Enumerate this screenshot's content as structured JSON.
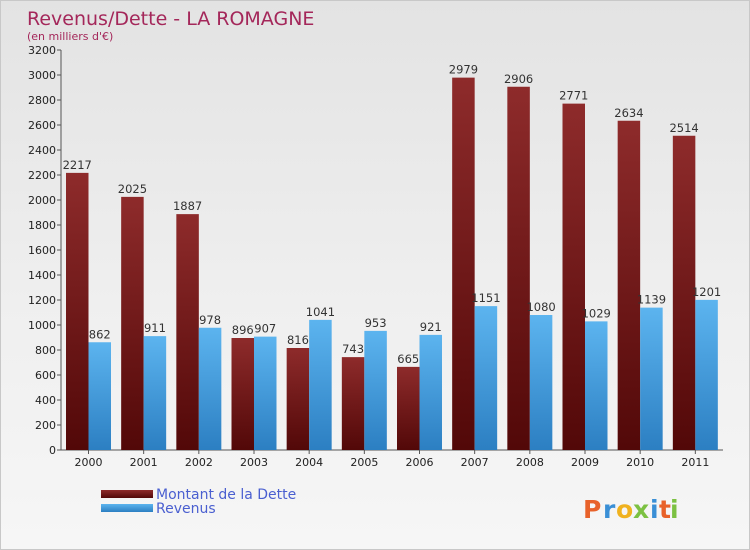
{
  "header": {
    "title": "Revenus/Dette - LA ROMAGNE",
    "subtitle": "(en milliers d'€)"
  },
  "chart_data": {
    "type": "bar",
    "categories": [
      "2000",
      "2001",
      "2002",
      "2003",
      "2004",
      "2005",
      "2006",
      "2007",
      "2008",
      "2009",
      "2010",
      "2011"
    ],
    "series": [
      {
        "name": "Montant de la Dette",
        "values": [
          2217,
          2025,
          1887,
          896,
          816,
          743,
          665,
          2979,
          2906,
          2771,
          2634,
          2514
        ],
        "color": "#7a1a1a"
      },
      {
        "name": "Revenus",
        "values": [
          862,
          911,
          978,
          907,
          1041,
          953,
          921,
          1151,
          1080,
          1029,
          1139,
          1201
        ],
        "color": "#4aa3e6"
      }
    ],
    "title": "Revenus/Dette - LA ROMAGNE",
    "subtitle": "(en milliers d'€)",
    "ylim": [
      0,
      3200
    ],
    "ytick_step": 200,
    "grid": false,
    "legend": "bottom-left"
  },
  "logo": {
    "letters": [
      "P",
      "r",
      "o",
      "x",
      "i",
      "t",
      "i"
    ],
    "colors": [
      "#e8622a",
      "#3a8fd6",
      "#f0b21f",
      "#7cc142",
      "#3a8fd6",
      "#e8622a",
      "#7cc142"
    ]
  }
}
